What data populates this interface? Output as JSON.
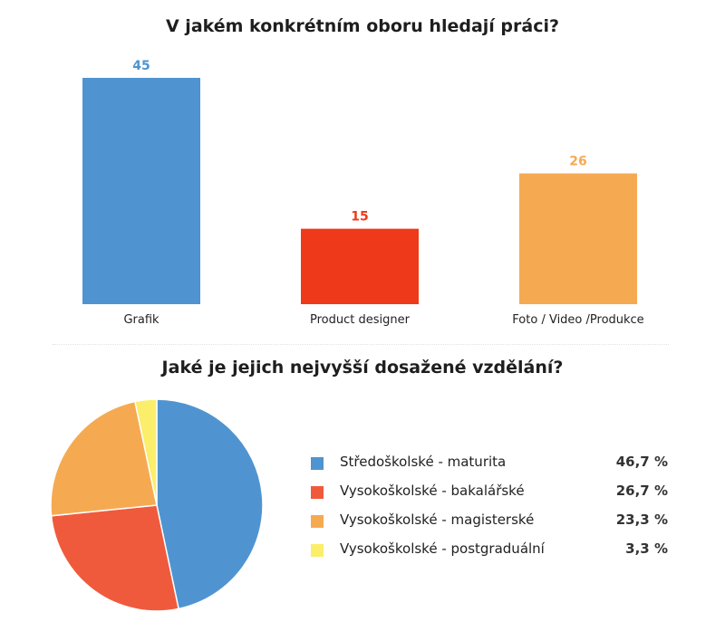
{
  "charts": {
    "bar_title": "V jakém konkrétním oboru hledají práci?",
    "pie_title": "Jaké je jejich nejvyšší dosažené vzdělání?"
  },
  "chart_data": [
    {
      "type": "bar",
      "title": "V jakém konkrétním oboru hledají práci?",
      "categories": [
        "Grafik",
        "Product designer",
        "Foto / Video /Produkce"
      ],
      "values": [
        45,
        15,
        26
      ],
      "colors": [
        "#4f94d0",
        "#ee3a1a",
        "#f5aa52"
      ],
      "value_labels": [
        "45",
        "15",
        "26"
      ],
      "grid": false,
      "legend": "none"
    },
    {
      "type": "pie",
      "title": "Jaké je jejich nejvyšší dosažené vzdělání?",
      "categories": [
        "Středoškolské - maturita",
        "Vysokoškolské - bakalářské",
        "Vysokoškolské - magisterské",
        "Vysokoškolské - postgraduální"
      ],
      "values": [
        46.7,
        26.7,
        23.3,
        3.3
      ],
      "value_labels": [
        "46,7 %",
        "26,7 %",
        "23,3 %",
        "3,3 %"
      ],
      "colors": [
        "#4f94d0",
        "#f05a3c",
        "#f5aa52",
        "#fbee6a"
      ],
      "legend": "right"
    }
  ]
}
